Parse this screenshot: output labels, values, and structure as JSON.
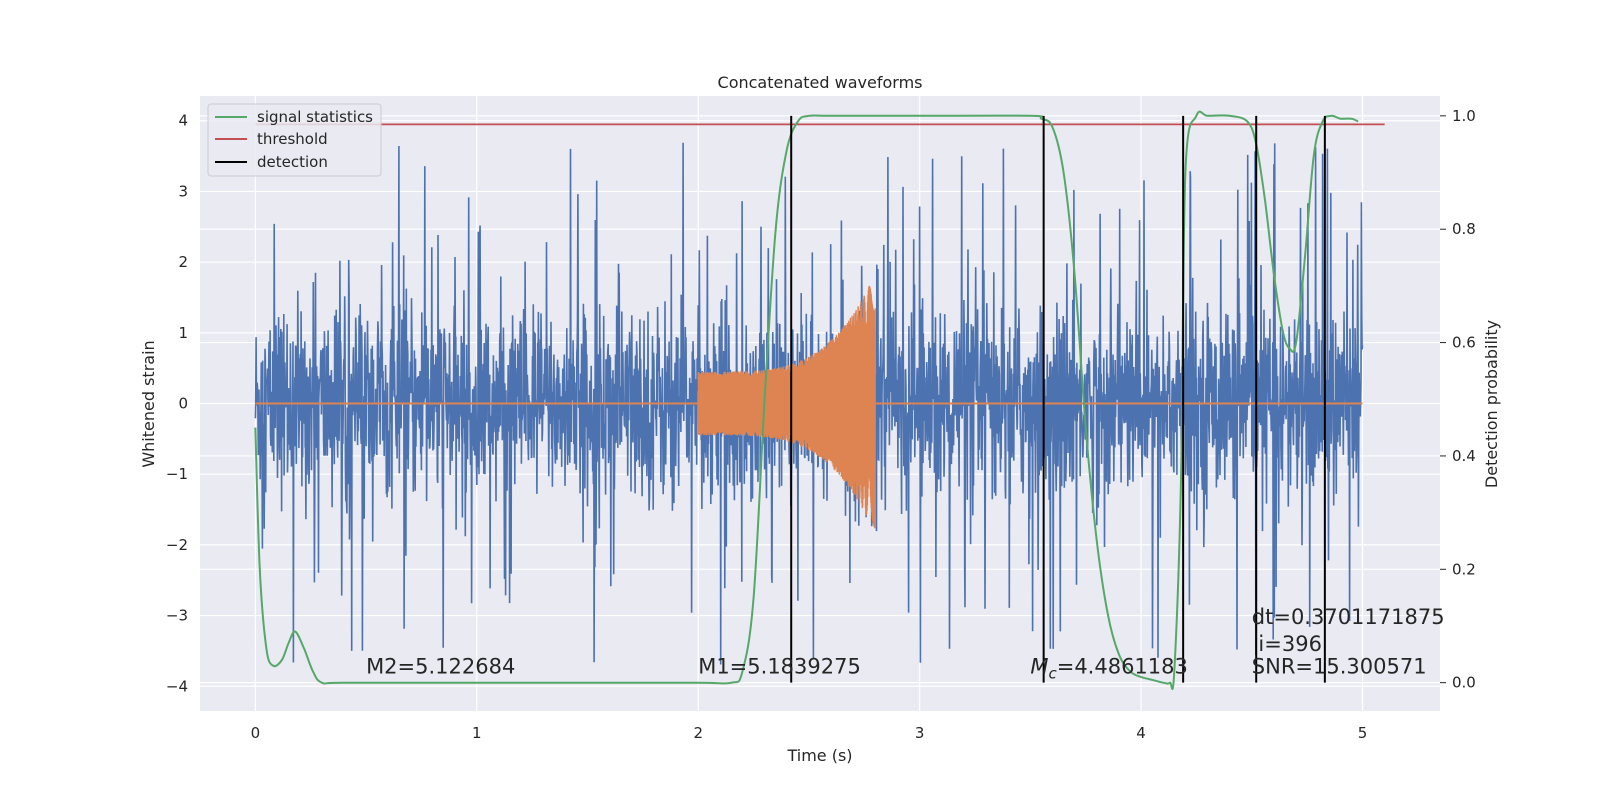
{
  "chart_data": {
    "type": "line",
    "title": "Concatenated waveforms",
    "xlabel": "Time (s)",
    "ylabel": "Whitened strain",
    "ylabel_right": "Detection probability",
    "xlim": [
      -0.25,
      5.35
    ],
    "ylim": [
      -4.35,
      4.35
    ],
    "ylim_right": [
      -0.05,
      1.035
    ],
    "x_ticks": [
      0,
      1,
      2,
      3,
      4,
      5
    ],
    "x_tick_labels": [
      "0",
      "1",
      "2",
      "3",
      "4",
      "5"
    ],
    "y_ticks": [
      -4,
      -3,
      -2,
      -1,
      0,
      1,
      2,
      3,
      4
    ],
    "y_tick_labels": [
      "−4",
      "−3",
      "−2",
      "−1",
      "0",
      "1",
      "2",
      "3",
      "4"
    ],
    "y_right_ticks": [
      0.0,
      0.2,
      0.4,
      0.6,
      0.8,
      1.0
    ],
    "y_right_tick_labels": [
      "0.0",
      "0.2",
      "0.4",
      "0.6",
      "0.8",
      "1.0"
    ],
    "grid": true,
    "legend_position": "top-left",
    "legend": [
      {
        "label": "signal statistics",
        "color": "#55a868"
      },
      {
        "label": "threshold",
        "color": "#c44e52"
      },
      {
        "label": "detection",
        "color": "#000000"
      }
    ],
    "series": [
      {
        "name": "",
        "kind": "noise",
        "color": "#4c72b0",
        "x_range": [
          0,
          5
        ],
        "typical_amplitude": 0.75,
        "peak_min": -3.9,
        "peak_max": 3.9
      },
      {
        "name": "",
        "kind": "chirp",
        "color": "#dd8452",
        "x_range": [
          2.0,
          2.8
        ],
        "amplitude_start": 0.45,
        "amplitude_end": 1.85
      },
      {
        "name": "signal statistics",
        "axis": "right",
        "color": "#55a868",
        "x": [
          0,
          0.02,
          0.05,
          0.08,
          0.12,
          0.15,
          0.18,
          0.22,
          0.26,
          0.3,
          0.4,
          1.0,
          1.5,
          2.0,
          2.15,
          2.2,
          2.25,
          2.3,
          2.35,
          2.4,
          2.45,
          2.5,
          2.6,
          3.0,
          3.5,
          3.55,
          3.6,
          3.65,
          3.7,
          3.75,
          3.8,
          3.85,
          3.9,
          3.95,
          4.0,
          4.05,
          4.1,
          4.13,
          4.15,
          4.18,
          4.2,
          4.25,
          4.3,
          4.4,
          4.48,
          4.52,
          4.56,
          4.6,
          4.64,
          4.67,
          4.7,
          4.74,
          4.78,
          4.82,
          4.86,
          4.9,
          4.95,
          4.98
        ],
        "y": [
          0.45,
          0.2,
          0.06,
          0.03,
          0.04,
          0.07,
          0.09,
          0.06,
          0.02,
          0.0,
          0.0,
          0.0,
          0.0,
          0.0,
          0.0,
          0.02,
          0.15,
          0.5,
          0.8,
          0.94,
          0.99,
          1.0,
          1.0,
          1.0,
          1.0,
          0.995,
          0.98,
          0.9,
          0.72,
          0.45,
          0.25,
          0.12,
          0.05,
          0.02,
          0.01,
          0.005,
          0.0,
          0.0,
          0.02,
          0.35,
          0.9,
          1.0,
          1.0,
          1.0,
          0.99,
          0.95,
          0.85,
          0.72,
          0.62,
          0.59,
          0.6,
          0.75,
          0.93,
          0.99,
          1.0,
          0.995,
          0.995,
          0.99
        ]
      },
      {
        "name": "threshold",
        "axis": "right",
        "color": "#c44e52",
        "x": [
          0,
          5.1
        ],
        "y": [
          0.985,
          0.985
        ]
      }
    ],
    "detections": [
      2.42,
      3.56,
      4.19,
      4.52,
      4.83
    ],
    "detection_range_right": [
      0.0,
      1.0
    ],
    "annotations": [
      {
        "text": "M2=5.122684",
        "x": 0.5,
        "y": -3.82
      },
      {
        "text": "M1=5.1839275",
        "x": 2.0,
        "y": -3.82
      },
      {
        "text": "=4.4861183",
        "prefix_main": "M",
        "prefix_sub": "c",
        "x": 3.5,
        "y": -3.82
      },
      {
        "text": "dt=0.3701171875",
        "x": 4.5,
        "y": -3.12
      },
      {
        "text": "i=396",
        "x": 4.53,
        "y": -3.5
      },
      {
        "text": "SNR=15.300571",
        "x": 4.5,
        "y": -3.82
      }
    ]
  }
}
